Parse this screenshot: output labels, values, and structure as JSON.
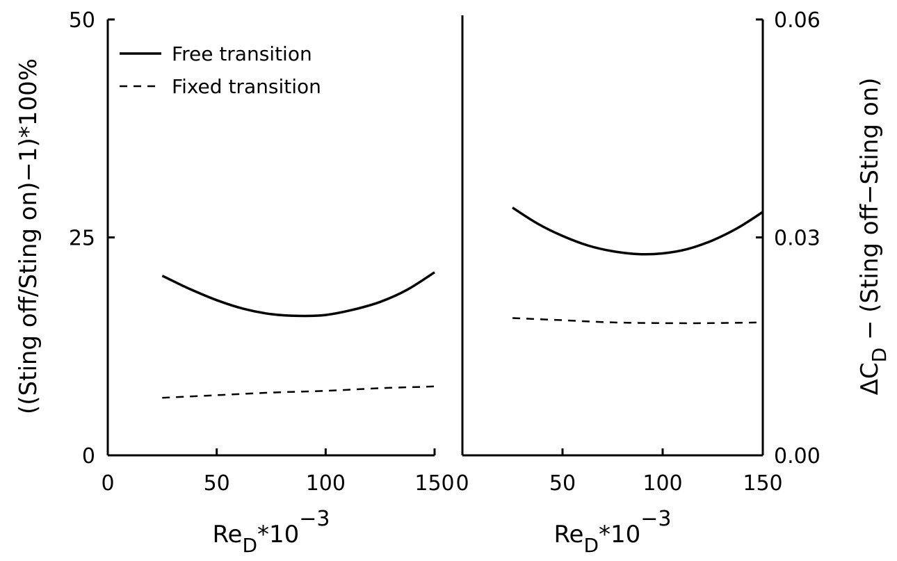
{
  "chart_data": [
    {
      "type": "line",
      "panel": "left",
      "xlabel": {
        "base": "Re",
        "sub": "D",
        "mid": "*10",
        "sup": "-3"
      },
      "ylabel": "((Sting off/Sting on)−1)*100%",
      "xlim": [
        0,
        150
      ],
      "ylim": [
        0,
        50
      ],
      "x_ticks": [
        "0",
        "50",
        "100",
        "150"
      ],
      "y_ticks": [
        "0",
        "25",
        "50"
      ],
      "legend": {
        "position": "top-left",
        "entries": [
          "Free transition",
          "Fixed transition"
        ]
      },
      "series": [
        {
          "name": "Free transition",
          "style": "solid",
          "x": [
            25,
            37.5,
            50,
            62.5,
            75,
            87.5,
            100,
            112.5,
            125,
            137.5,
            150
          ],
          "y": [
            20.6,
            19.1,
            17.8,
            16.8,
            16.2,
            16.0,
            16.1,
            16.7,
            17.6,
            19.0,
            21.0
          ]
        },
        {
          "name": "Fixed transition",
          "style": "dashed",
          "x": [
            25,
            50,
            75,
            100,
            125,
            150
          ],
          "y": [
            6.6,
            6.9,
            7.2,
            7.4,
            7.7,
            7.9
          ]
        }
      ]
    },
    {
      "type": "line",
      "panel": "right",
      "xlabel": {
        "base": "Re",
        "sub": "D",
        "mid": "*10",
        "sup": "-3"
      },
      "ylabel": {
        "prefix": "ΔC",
        "sub": "D",
        "rest": " − (Sting off−Sting on)"
      },
      "xlim": [
        0,
        150
      ],
      "ylim": [
        0,
        0.06
      ],
      "x_ticks": [
        "0",
        "50",
        "100",
        "150"
      ],
      "y_ticks": [
        "0.00",
        "0.03",
        "0.06"
      ],
      "series": [
        {
          "name": "Free transition",
          "style": "solid",
          "x": [
            25,
            37.5,
            50,
            62.5,
            75,
            87.5,
            100,
            112.5,
            125,
            137.5,
            150
          ],
          "y": [
            0.0341,
            0.0319,
            0.0302,
            0.0289,
            0.0281,
            0.0277,
            0.0278,
            0.0284,
            0.0296,
            0.0313,
            0.0335
          ]
        },
        {
          "name": "Fixed transition",
          "style": "dashed",
          "x": [
            25,
            50,
            75,
            100,
            125,
            150
          ],
          "y": [
            0.0189,
            0.0186,
            0.0183,
            0.0182,
            0.0182,
            0.0183
          ]
        }
      ]
    }
  ]
}
